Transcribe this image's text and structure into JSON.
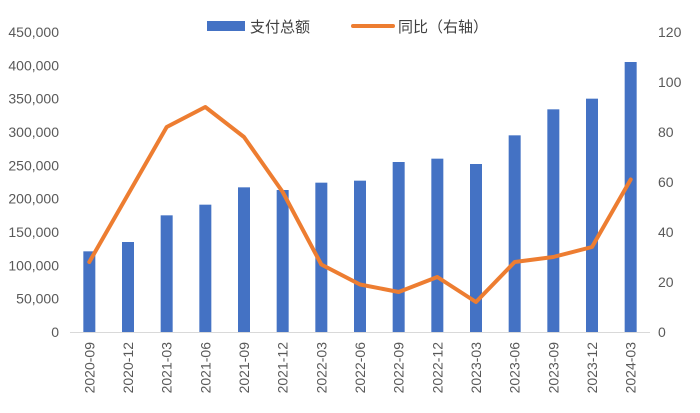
{
  "chart_data": {
    "type": "bar+line",
    "categories": [
      "2020-09",
      "2020-12",
      "2021-03",
      "2021-06",
      "2021-09",
      "2021-12",
      "2022-03",
      "2022-06",
      "2022-09",
      "2022-12",
      "2023-03",
      "2023-06",
      "2023-09",
      "2023-12",
      "2024-03"
    ],
    "series": [
      {
        "name": "支付总额",
        "type": "bar",
        "axis": "left",
        "color": "#4472C4",
        "values": [
          121000,
          135000,
          175000,
          191000,
          217000,
          213000,
          224000,
          227000,
          255000,
          260000,
          252000,
          295000,
          334000,
          350000,
          405000
        ]
      },
      {
        "name": "同比（右轴）",
        "type": "line",
        "axis": "right",
        "color": "#ED7D31",
        "values": [
          28,
          55,
          82,
          90,
          78,
          56,
          27,
          19,
          16,
          22,
          12,
          28,
          30,
          34,
          61
        ]
      }
    ],
    "left_axis": {
      "min": 0,
      "max": 450000,
      "step": 50000,
      "tick_labels": [
        "0",
        "50,000",
        "100,000",
        "150,000",
        "200,000",
        "250,000",
        "300,000",
        "350,000",
        "400,000",
        "450,000"
      ]
    },
    "right_axis": {
      "min": 0,
      "max": 120,
      "step": 20,
      "tick_labels": [
        "0",
        "20",
        "40",
        "60",
        "80",
        "100",
        "120"
      ]
    },
    "grid": false,
    "legend_position": "top-center",
    "x_label_rotation": "vertical"
  }
}
